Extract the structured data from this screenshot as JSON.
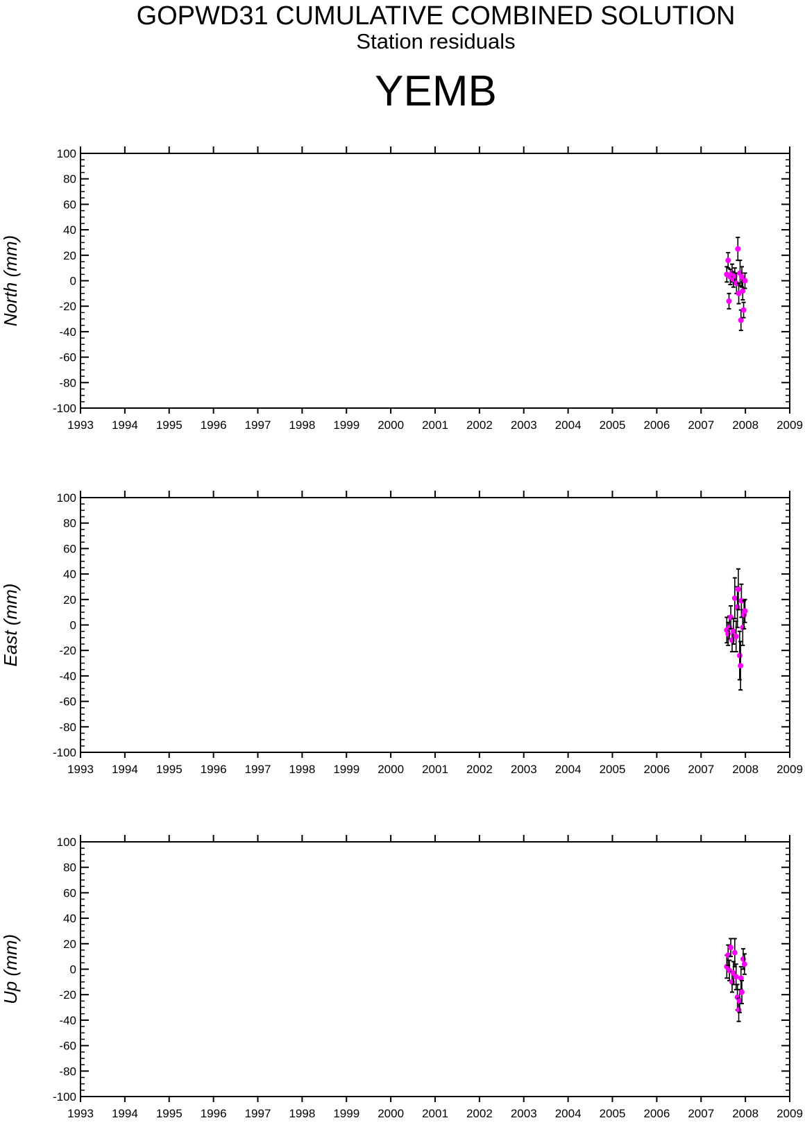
{
  "header": {
    "title": "GOPWD31 CUMULATIVE COMBINED SOLUTION",
    "subtitle": "Station residuals",
    "station": "YEMB"
  },
  "colors": {
    "marker": "#ff00ff",
    "errorbar": "#000000",
    "axis": "#000000"
  },
  "chart_data": [
    {
      "type": "scatter",
      "ylabel": "North (mm)",
      "xlim": [
        1993,
        2009
      ],
      "ylim": [
        -100,
        100
      ],
      "xticks": [
        1993,
        1994,
        1995,
        1996,
        1997,
        1998,
        1999,
        2000,
        2001,
        2002,
        2003,
        2004,
        2005,
        2006,
        2007,
        2008,
        2009
      ],
      "yticks": [
        100,
        80,
        60,
        40,
        20,
        0,
        -20,
        -40,
        -60,
        -80,
        -100
      ],
      "points": [
        {
          "x": 2007.58,
          "y": 5,
          "err": 6
        },
        {
          "x": 2007.61,
          "y": 16,
          "err": 6
        },
        {
          "x": 2007.63,
          "y": -16,
          "err": 6
        },
        {
          "x": 2007.66,
          "y": 3,
          "err": 6
        },
        {
          "x": 2007.7,
          "y": 6,
          "err": 7
        },
        {
          "x": 2007.73,
          "y": 1,
          "err": 6
        },
        {
          "x": 2007.76,
          "y": 4,
          "err": 6
        },
        {
          "x": 2007.8,
          "y": -2,
          "err": 8
        },
        {
          "x": 2007.83,
          "y": 25,
          "err": 9
        },
        {
          "x": 2007.85,
          "y": -10,
          "err": 8
        },
        {
          "x": 2007.88,
          "y": 6,
          "err": 10
        },
        {
          "x": 2007.9,
          "y": -31,
          "err": 8
        },
        {
          "x": 2007.92,
          "y": 3,
          "err": 8
        },
        {
          "x": 2007.94,
          "y": -8,
          "err": 7
        },
        {
          "x": 2007.96,
          "y": -23,
          "err": 6
        },
        {
          "x": 2007.99,
          "y": 0,
          "err": 6
        }
      ]
    },
    {
      "type": "scatter",
      "ylabel": "East (mm)",
      "xlim": [
        1993,
        2009
      ],
      "ylim": [
        -100,
        100
      ],
      "xticks": [
        1993,
        1994,
        1995,
        1996,
        1997,
        1998,
        1999,
        2000,
        2001,
        2002,
        2003,
        2004,
        2005,
        2006,
        2007,
        2008,
        2009
      ],
      "yticks": [
        100,
        80,
        60,
        40,
        20,
        0,
        -20,
        -40,
        -60,
        -80,
        -100
      ],
      "points": [
        {
          "x": 2007.58,
          "y": -4,
          "err": 10
        },
        {
          "x": 2007.61,
          "y": -7,
          "err": 9
        },
        {
          "x": 2007.64,
          "y": -2,
          "err": 9
        },
        {
          "x": 2007.67,
          "y": 6,
          "err": 9
        },
        {
          "x": 2007.7,
          "y": -12,
          "err": 9
        },
        {
          "x": 2007.73,
          "y": -5,
          "err": 10
        },
        {
          "x": 2007.76,
          "y": 21,
          "err": 16
        },
        {
          "x": 2007.79,
          "y": -9,
          "err": 12
        },
        {
          "x": 2007.82,
          "y": 14,
          "err": 16
        },
        {
          "x": 2007.84,
          "y": 28,
          "err": 16
        },
        {
          "x": 2007.87,
          "y": -24,
          "err": 19
        },
        {
          "x": 2007.89,
          "y": -32,
          "err": 19
        },
        {
          "x": 2007.91,
          "y": 19,
          "err": 13
        },
        {
          "x": 2007.94,
          "y": -2,
          "err": 14
        },
        {
          "x": 2007.97,
          "y": 8,
          "err": 11
        },
        {
          "x": 2007.99,
          "y": 11,
          "err": 9
        }
      ]
    },
    {
      "type": "scatter",
      "ylabel": "Up (mm)",
      "xlim": [
        1993,
        2009
      ],
      "ylim": [
        -100,
        100
      ],
      "xticks": [
        1993,
        1994,
        1995,
        1996,
        1997,
        1998,
        1999,
        2000,
        2001,
        2002,
        2003,
        2004,
        2005,
        2006,
        2007,
        2008,
        2009
      ],
      "yticks": [
        100,
        80,
        60,
        40,
        20,
        0,
        -20,
        -40,
        -60,
        -80,
        -100
      ],
      "points": [
        {
          "x": 2007.58,
          "y": 2,
          "err": 9
        },
        {
          "x": 2007.61,
          "y": 11,
          "err": 8
        },
        {
          "x": 2007.64,
          "y": -1,
          "err": 8
        },
        {
          "x": 2007.67,
          "y": 17,
          "err": 7
        },
        {
          "x": 2007.7,
          "y": -10,
          "err": 8
        },
        {
          "x": 2007.73,
          "y": -3,
          "err": 9
        },
        {
          "x": 2007.76,
          "y": 13,
          "err": 11
        },
        {
          "x": 2007.79,
          "y": -6,
          "err": 10
        },
        {
          "x": 2007.82,
          "y": -22,
          "err": 10
        },
        {
          "x": 2007.85,
          "y": -32,
          "err": 9
        },
        {
          "x": 2007.87,
          "y": -25,
          "err": 9
        },
        {
          "x": 2007.9,
          "y": -7,
          "err": 9
        },
        {
          "x": 2007.92,
          "y": -18,
          "err": 9
        },
        {
          "x": 2007.95,
          "y": 8,
          "err": 8
        },
        {
          "x": 2007.98,
          "y": 4,
          "err": 8
        }
      ]
    }
  ]
}
